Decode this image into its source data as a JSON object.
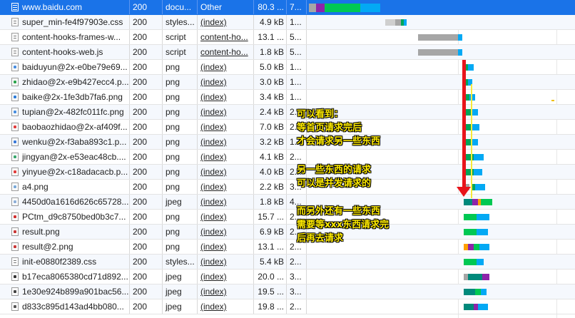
{
  "rows": [
    {
      "name": "www.baidu.com",
      "status": "200",
      "type": "docu...",
      "initiator": "Other",
      "size": "80.3 ...",
      "time": "7...",
      "icon": "document-icon"
    },
    {
      "name": "super_min-fe4f97903e.css",
      "status": "200",
      "type": "styles...",
      "initiator": "(index)",
      "size": "4.9 kB",
      "time": "1...",
      "icon": "stylesheet-icon"
    },
    {
      "name": "content-hooks-frames-w...",
      "status": "200",
      "type": "script",
      "initiator": "content-ho...",
      "size": "13.1 ...",
      "time": "5...",
      "icon": "script-icon"
    },
    {
      "name": "content-hooks-web.js",
      "status": "200",
      "type": "script",
      "initiator": "content-ho...",
      "size": "1.8 kB",
      "time": "5...",
      "icon": "script-icon"
    },
    {
      "name": "baiduyun@2x-e0be79e69...",
      "status": "200",
      "type": "png",
      "initiator": "(index)",
      "size": "5.0 kB",
      "time": "1...",
      "icon": "image-icon"
    },
    {
      "name": "zhidao@2x-e9b427ecc4.p...",
      "status": "200",
      "type": "png",
      "initiator": "(index)",
      "size": "3.0 kB",
      "time": "1...",
      "icon": "image-icon"
    },
    {
      "name": "baike@2x-1fe3db7fa6.png",
      "status": "200",
      "type": "png",
      "initiator": "(index)",
      "size": "3.4 kB",
      "time": "1...",
      "icon": "image-icon"
    },
    {
      "name": "tupian@2x-482fc011fc.png",
      "status": "200",
      "type": "png",
      "initiator": "(index)",
      "size": "2.4 kB",
      "time": "2...",
      "icon": "image-icon"
    },
    {
      "name": "baobaozhidao@2x-af409f...",
      "status": "200",
      "type": "png",
      "initiator": "(index)",
      "size": "7.0 kB",
      "time": "2...",
      "icon": "image-icon"
    },
    {
      "name": "wenku@2x-f3aba893c1.p...",
      "status": "200",
      "type": "png",
      "initiator": "(index)",
      "size": "3.2 kB",
      "time": "1...",
      "icon": "image-icon"
    },
    {
      "name": "jingyan@2x-e53eac48cb....",
      "status": "200",
      "type": "png",
      "initiator": "(index)",
      "size": "4.1 kB",
      "time": "2...",
      "icon": "image-icon"
    },
    {
      "name": "yinyue@2x-c18adacacb.p...",
      "status": "200",
      "type": "png",
      "initiator": "(index)",
      "size": "4.0 kB",
      "time": "2...",
      "icon": "image-icon"
    },
    {
      "name": "a4.png",
      "status": "200",
      "type": "png",
      "initiator": "(index)",
      "size": "2.2 kB",
      "time": "3...",
      "icon": "image-icon"
    },
    {
      "name": "4450d0a1616d626c65728...",
      "status": "200",
      "type": "jpeg",
      "initiator": "(index)",
      "size": "1.8 kB",
      "time": "4...",
      "icon": "image-icon"
    },
    {
      "name": "PCtm_d9c8750bed0b3c7...",
      "status": "200",
      "type": "png",
      "initiator": "(index)",
      "size": "15.7 ...",
      "time": "2...",
      "icon": "image-icon"
    },
    {
      "name": "result.png",
      "status": "200",
      "type": "png",
      "initiator": "(index)",
      "size": "6.9 kB",
      "time": "2...",
      "icon": "image-icon"
    },
    {
      "name": "result@2.png",
      "status": "200",
      "type": "png",
      "initiator": "(index)",
      "size": "13.1 ...",
      "time": "2...",
      "icon": "image-icon"
    },
    {
      "name": "init-e0880f2389.css",
      "status": "200",
      "type": "styles...",
      "initiator": "(index)",
      "size": "5.4 kB",
      "time": "2...",
      "icon": "stylesheet-icon"
    },
    {
      "name": "b17eca8065380cd71d892...",
      "status": "200",
      "type": "jpeg",
      "initiator": "(index)",
      "size": "20.0 ...",
      "time": "3...",
      "icon": "image-icon"
    },
    {
      "name": "1e30e924b899a901bac56...",
      "status": "200",
      "type": "jpeg",
      "initiator": "(index)",
      "size": "19.5 ...",
      "time": "3...",
      "icon": "image-icon"
    },
    {
      "name": "d833c895d143ad4bb080...",
      "status": "200",
      "type": "jpeg",
      "initiator": "(index)",
      "size": "19.8 ...",
      "time": "2...",
      "icon": "image-icon"
    }
  ],
  "annotations": {
    "block1": [
      "可以看到：",
      "等首页请求完后",
      "才会请求另一些东西"
    ],
    "block2": [
      "另一些东西的请求",
      "可以是并发请求的"
    ],
    "block3": [
      "而另外还有一些东西",
      "需要等xxx东西请求完",
      "后再去请求"
    ]
  },
  "colors": {
    "selected_row": "#1a73e8",
    "waiting": "#00a65a",
    "download": "#03a9f4",
    "queue": "#a6a6a6",
    "annotation_text": "#ffeb00",
    "arrow": "#e8141b"
  }
}
